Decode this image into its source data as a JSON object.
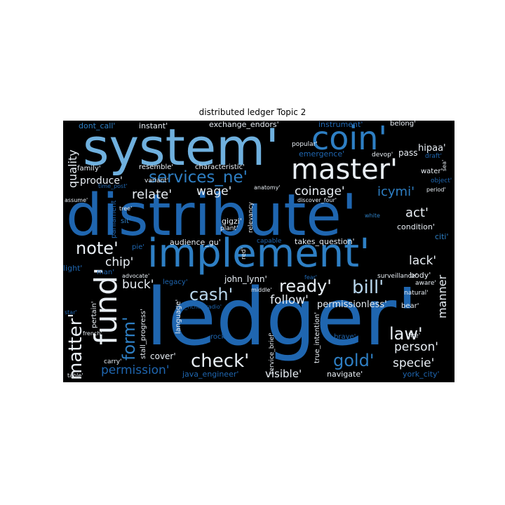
{
  "title": "distributed ledger Topic 2",
  "colors": {
    "background": "#000000",
    "deep_blue": "#1f66b0",
    "mid_blue": "#2e7fc4",
    "light_blue": "#6fb0de",
    "pale_blue": "#b8d6ec",
    "near_white": "#e8eef4"
  },
  "words": [
    {
      "text": "ledger'",
      "color": "#1f66b0"
    },
    {
      "text": "distribute'",
      "color": "#1f66b0"
    },
    {
      "text": "system'",
      "color": "#6fb0de"
    },
    {
      "text": "implement'",
      "color": "#2e7fc4"
    },
    {
      "text": "coin'",
      "color": "#2e7fc4"
    },
    {
      "text": "master'",
      "color": "#e8eef4"
    },
    {
      "text": "fund'",
      "color": "#e8eef4"
    },
    {
      "text": "services_ne'",
      "color": "#2e7fc4"
    },
    {
      "text": "cash'",
      "color": "#b8d6ec"
    },
    {
      "text": "check'",
      "color": "#e8eef4"
    },
    {
      "text": "matter'",
      "color": "#e8eef4"
    },
    {
      "text": "note'",
      "color": "#e8eef4"
    },
    {
      "text": "bill'",
      "color": "#b8d6ec"
    },
    {
      "text": "ready'",
      "color": "#e8eef4"
    },
    {
      "text": "gold'",
      "color": "#2e7fc4"
    },
    {
      "text": "law'",
      "color": "#e8eef4"
    },
    {
      "text": "form'",
      "color": "#2e7fc4"
    },
    {
      "text": "relate'",
      "color": "#e8eef4"
    },
    {
      "text": "wage'",
      "color": "#e8eef4"
    },
    {
      "text": "coinage'",
      "color": "#e8eef4"
    },
    {
      "text": "icymi'",
      "color": "#2e7fc4"
    },
    {
      "text": "act'",
      "color": "#e8eef4"
    },
    {
      "text": "chip'",
      "color": "#e8eef4"
    },
    {
      "text": "buck'",
      "color": "#e8eef4"
    },
    {
      "text": "lack'",
      "color": "#e8eef4"
    },
    {
      "text": "follow'",
      "color": "#e8eef4"
    },
    {
      "text": "person'",
      "color": "#e8eef4"
    },
    {
      "text": "specie'",
      "color": "#e8eef4"
    },
    {
      "text": "quality",
      "color": "#e8eef4"
    },
    {
      "text": "produce'",
      "color": "#e8eef4"
    },
    {
      "text": "permission'",
      "color": "#1f66b0"
    },
    {
      "text": "permissionless'",
      "color": "#e8eef4"
    },
    {
      "text": "manner",
      "color": "#e8eef4"
    },
    {
      "text": "visible'",
      "color": "#e8eef4"
    },
    {
      "text": "hipaa'",
      "color": "#e8eef4"
    },
    {
      "text": "pass",
      "color": "#e8eef4"
    },
    {
      "text": "dont_call'",
      "color": "#2e7fc4"
    },
    {
      "text": "instant'",
      "color": "#e8eef4"
    },
    {
      "text": "exchange_endors'",
      "color": "#e8eef4"
    },
    {
      "text": "instrument'",
      "color": "#1f66b0"
    },
    {
      "text": "belong'",
      "color": "#e8eef4"
    },
    {
      "text": "popular'",
      "color": "#e8eef4"
    },
    {
      "text": "emergence'",
      "color": "#1f66b0"
    },
    {
      "text": "devop'",
      "color": "#e8eef4"
    },
    {
      "text": "draft'",
      "color": "#1f66b0"
    },
    {
      "text": "family'",
      "color": "#e8eef4"
    },
    {
      "text": "resemble'",
      "color": "#e8eef4"
    },
    {
      "text": "characteristic'",
      "color": "#e8eef4"
    },
    {
      "text": "variant'",
      "color": "#e8eef4"
    },
    {
      "text": "water'",
      "color": "#e8eef4"
    },
    {
      "text": "object'",
      "color": "#1f66b0"
    },
    {
      "text": "period'",
      "color": "#e8eef4"
    },
    {
      "text": "time_post'",
      "color": "#1f66b0"
    },
    {
      "text": "anatomy'",
      "color": "#e8eef4"
    },
    {
      "text": "discover_four'",
      "color": "#e8eef4"
    },
    {
      "text": "assume'",
      "color": "#e8eef4"
    },
    {
      "text": "tree'",
      "color": "#e8eef4"
    },
    {
      "text": "parliament",
      "color": "#1f66b0"
    },
    {
      "text": "sit'",
      "color": "#2e7fc4"
    },
    {
      "text": "gigzi'",
      "color": "#e8eef4"
    },
    {
      "text": "plant'",
      "color": "#e8eef4"
    },
    {
      "text": "relevancy",
      "color": "#e8eef4"
    },
    {
      "text": "white",
      "color": "#2e7fc4"
    },
    {
      "text": "condition'",
      "color": "#e8eef4"
    },
    {
      "text": "citi'",
      "color": "#2e7fc4"
    },
    {
      "text": "audience_gu'",
      "color": "#e8eef4"
    },
    {
      "text": "capable",
      "color": "#1f66b0"
    },
    {
      "text": "takes_question'",
      "color": "#e8eef4"
    },
    {
      "text": "pie'",
      "color": "#1f66b0"
    },
    {
      "text": "red'",
      "color": "#e8eef4"
    },
    {
      "text": "light'",
      "color": "#1f66b0"
    },
    {
      "text": "man'",
      "color": "#1f66b0"
    },
    {
      "text": "advocate'",
      "color": "#e8eef4"
    },
    {
      "text": "legacy'",
      "color": "#1f66b0"
    },
    {
      "text": "john_lynn'",
      "color": "#e8eef4"
    },
    {
      "text": "fear'",
      "color": "#1f66b0"
    },
    {
      "text": "middle'",
      "color": "#e8eef4"
    },
    {
      "text": "surveillance'",
      "color": "#e8eef4"
    },
    {
      "text": "body'",
      "color": "#e8eef4"
    },
    {
      "text": "aware'",
      "color": "#e8eef4"
    },
    {
      "text": "natural'",
      "color": "#e8eef4"
    },
    {
      "text": "pertain'",
      "color": "#e8eef4"
    },
    {
      "text": "sky_hcndwradio'",
      "color": "#1f66b0"
    },
    {
      "text": "star'",
      "color": "#1f66b0"
    },
    {
      "text": "french'",
      "color": "#e8eef4"
    },
    {
      "text": "stall_progress'",
      "color": "#e8eef4"
    },
    {
      "text": "language'",
      "color": "#e8eef4"
    },
    {
      "text": "rock'",
      "color": "#1f66b0"
    },
    {
      "text": "service_brief'",
      "color": "#e8eef4"
    },
    {
      "text": "true_intention'",
      "color": "#e8eef4"
    },
    {
      "text": "brave'",
      "color": "#1f66b0"
    },
    {
      "text": "bear'",
      "color": "#e8eef4"
    },
    {
      "text": "fire'",
      "color": "#e8eef4"
    },
    {
      "text": "carry'",
      "color": "#e8eef4"
    },
    {
      "text": "table'",
      "color": "#e8eef4"
    },
    {
      "text": "cover'",
      "color": "#e8eef4"
    },
    {
      "text": "java_engineer'",
      "color": "#1f66b0"
    },
    {
      "text": "navigate'",
      "color": "#e8eef4"
    },
    {
      "text": "york_city'",
      "color": "#1f66b0"
    },
    {
      "text": "sea'",
      "color": "#e8eef4"
    }
  ]
}
